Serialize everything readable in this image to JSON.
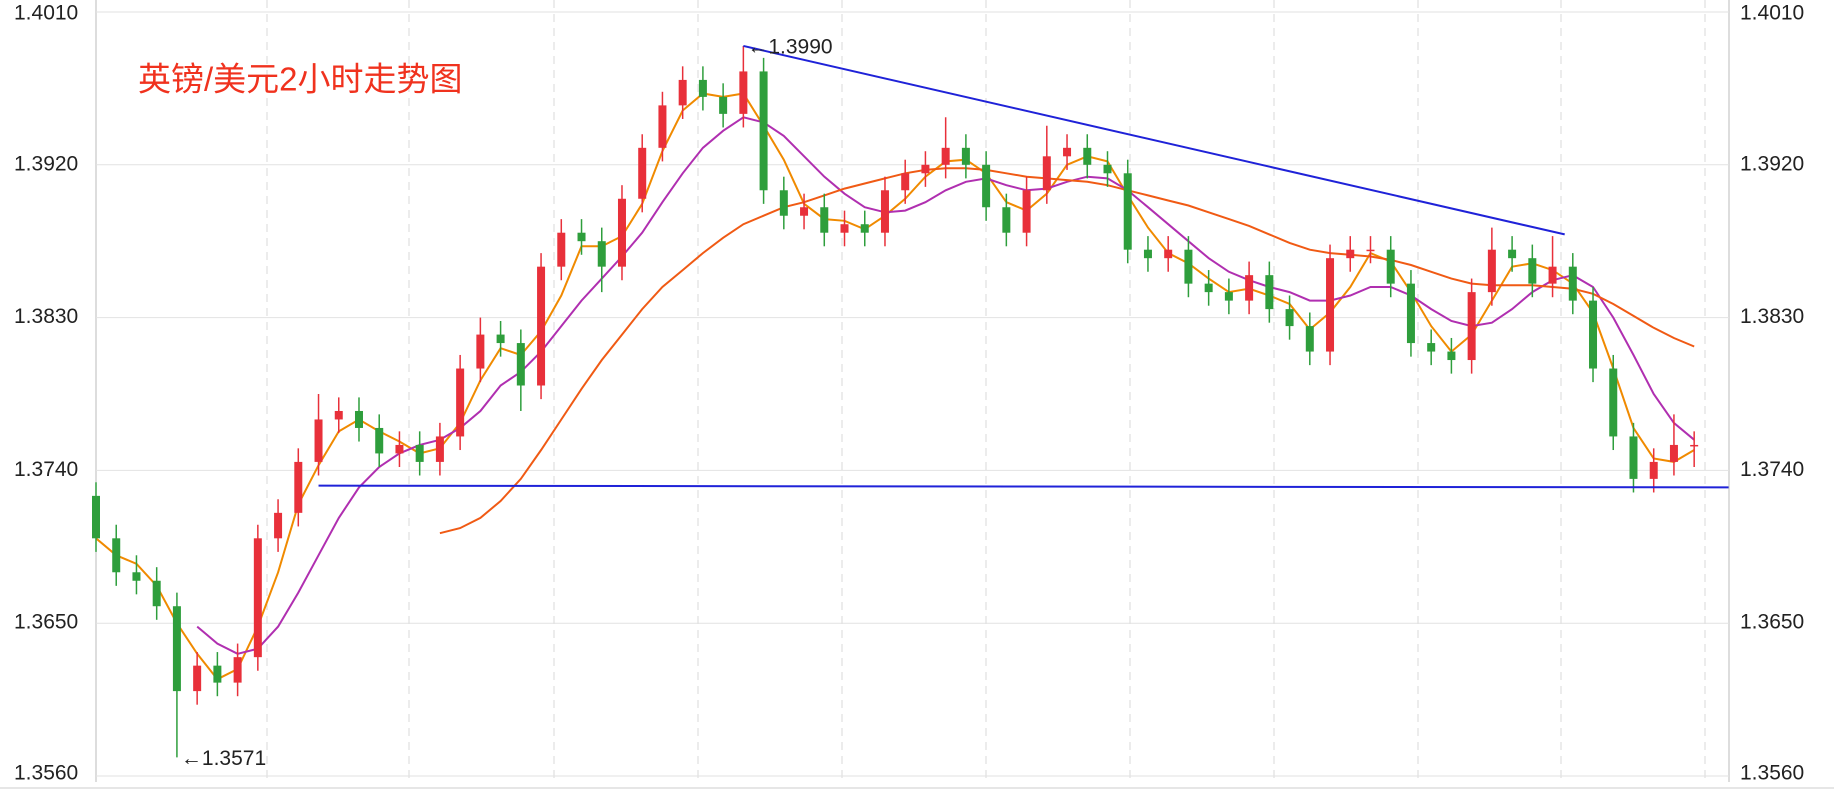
{
  "chart_data": {
    "type": "candlestick",
    "title": "英镑/美元2小时走势图",
    "up_color": "#e8303a",
    "down_color": "#2e9e3c",
    "ylim": [
      1.356,
      1.401
    ],
    "yticks": [
      {
        "value": 1.356,
        "label": "1.3560"
      },
      {
        "value": 1.365,
        "label": "1.3650"
      },
      {
        "value": 1.374,
        "label": "1.3740"
      },
      {
        "value": 1.383,
        "label": "1.3830"
      },
      {
        "value": 1.392,
        "label": "1.3920"
      },
      {
        "value": 1.401,
        "label": "1.4010"
      }
    ],
    "grid": true,
    "ohlc": [
      [
        1.3725,
        1.3733,
        1.3692,
        1.37
      ],
      [
        1.37,
        1.3708,
        1.3672,
        1.368
      ],
      [
        1.368,
        1.369,
        1.3667,
        1.3675
      ],
      [
        1.3675,
        1.3683,
        1.3652,
        1.366
      ],
      [
        1.366,
        1.3668,
        1.3571,
        1.361
      ],
      [
        1.361,
        1.3633,
        1.3602,
        1.3625
      ],
      [
        1.3625,
        1.3633,
        1.3607,
        1.3615
      ],
      [
        1.3615,
        1.3638,
        1.3607,
        1.363
      ],
      [
        1.363,
        1.3708,
        1.3622,
        1.37
      ],
      [
        1.37,
        1.3723,
        1.3692,
        1.3715
      ],
      [
        1.3715,
        1.3753,
        1.3707,
        1.3745
      ],
      [
        1.3745,
        1.3785,
        1.3737,
        1.377
      ],
      [
        1.377,
        1.3783,
        1.3762,
        1.3775
      ],
      [
        1.3775,
        1.3783,
        1.3757,
        1.3765
      ],
      [
        1.3765,
        1.3773,
        1.3742,
        1.375
      ],
      [
        1.375,
        1.3763,
        1.3742,
        1.3755
      ],
      [
        1.3755,
        1.3763,
        1.3737,
        1.3745
      ],
      [
        1.3745,
        1.3768,
        1.3737,
        1.376
      ],
      [
        1.376,
        1.3808,
        1.3752,
        1.38
      ],
      [
        1.38,
        1.383,
        1.3792,
        1.382
      ],
      [
        1.382,
        1.3828,
        1.3807,
        1.3815
      ],
      [
        1.3815,
        1.3823,
        1.3775,
        1.379
      ],
      [
        1.379,
        1.3868,
        1.3782,
        1.386
      ],
      [
        1.386,
        1.3888,
        1.3852,
        1.388
      ],
      [
        1.388,
        1.3888,
        1.3867,
        1.3875
      ],
      [
        1.3875,
        1.3883,
        1.3845,
        1.386
      ],
      [
        1.386,
        1.3908,
        1.3852,
        1.39
      ],
      [
        1.39,
        1.3938,
        1.3892,
        1.393
      ],
      [
        1.393,
        1.3963,
        1.3922,
        1.3955
      ],
      [
        1.3955,
        1.3978,
        1.3947,
        1.397
      ],
      [
        1.397,
        1.3978,
        1.3952,
        1.396
      ],
      [
        1.396,
        1.3968,
        1.3942,
        1.395
      ],
      [
        1.395,
        1.399,
        1.3942,
        1.3975
      ],
      [
        1.3975,
        1.3983,
        1.3897,
        1.3905
      ],
      [
        1.3905,
        1.3913,
        1.3882,
        1.389
      ],
      [
        1.389,
        1.3903,
        1.3882,
        1.3895
      ],
      [
        1.3895,
        1.3903,
        1.3872,
        1.388
      ],
      [
        1.388,
        1.3893,
        1.3872,
        1.3885
      ],
      [
        1.3885,
        1.3893,
        1.3872,
        1.388
      ],
      [
        1.388,
        1.3913,
        1.3872,
        1.3905
      ],
      [
        1.3905,
        1.3923,
        1.3897,
        1.3915
      ],
      [
        1.3915,
        1.3928,
        1.3907,
        1.392
      ],
      [
        1.392,
        1.3948,
        1.3912,
        1.393
      ],
      [
        1.393,
        1.3938,
        1.3912,
        1.392
      ],
      [
        1.392,
        1.3928,
        1.3887,
        1.3895
      ],
      [
        1.3895,
        1.3903,
        1.3872,
        1.388
      ],
      [
        1.388,
        1.3913,
        1.3872,
        1.3905
      ],
      [
        1.3905,
        1.3943,
        1.3897,
        1.3925
      ],
      [
        1.3925,
        1.3938,
        1.3917,
        1.393
      ],
      [
        1.393,
        1.3938,
        1.3912,
        1.392
      ],
      [
        1.392,
        1.3928,
        1.3907,
        1.3915
      ],
      [
        1.3915,
        1.3923,
        1.3862,
        1.387
      ],
      [
        1.387,
        1.3878,
        1.3857,
        1.3865
      ],
      [
        1.3865,
        1.3878,
        1.3857,
        1.387
      ],
      [
        1.387,
        1.3878,
        1.3842,
        1.385
      ],
      [
        1.385,
        1.3858,
        1.3837,
        1.3845
      ],
      [
        1.3845,
        1.3853,
        1.3832,
        1.384
      ],
      [
        1.384,
        1.3863,
        1.3832,
        1.3855
      ],
      [
        1.3855,
        1.3863,
        1.3827,
        1.3835
      ],
      [
        1.3835,
        1.3843,
        1.3817,
        1.3825
      ],
      [
        1.3825,
        1.3833,
        1.3802,
        1.381
      ],
      [
        1.381,
        1.3873,
        1.3802,
        1.3865
      ],
      [
        1.3865,
        1.3878,
        1.3857,
        1.387
      ],
      [
        1.387,
        1.3878,
        1.3862,
        1.387
      ],
      [
        1.387,
        1.3878,
        1.3842,
        1.385
      ],
      [
        1.385,
        1.3858,
        1.3807,
        1.3815
      ],
      [
        1.3815,
        1.3823,
        1.3802,
        1.381
      ],
      [
        1.381,
        1.3818,
        1.3797,
        1.3805
      ],
      [
        1.3805,
        1.3853,
        1.3797,
        1.3845
      ],
      [
        1.3845,
        1.3883,
        1.3837,
        1.387
      ],
      [
        1.387,
        1.3878,
        1.3857,
        1.3865
      ],
      [
        1.3865,
        1.3873,
        1.3842,
        1.385
      ],
      [
        1.385,
        1.3878,
        1.3842,
        1.386
      ],
      [
        1.386,
        1.3868,
        1.3832,
        1.384
      ],
      [
        1.384,
        1.3848,
        1.3792,
        1.38
      ],
      [
        1.38,
        1.3808,
        1.3752,
        1.376
      ],
      [
        1.376,
        1.3768,
        1.3727,
        1.3735
      ],
      [
        1.3735,
        1.3753,
        1.3727,
        1.3745
      ],
      [
        1.3745,
        1.3773,
        1.3737,
        1.3755
      ],
      [
        1.3755,
        1.3763,
        1.3742,
        1.3755
      ]
    ],
    "series": [
      {
        "color": "#f08a00",
        "values": [
          1.37,
          1.369,
          1.3685,
          1.3672,
          1.365,
          1.3632,
          1.3617,
          1.3623,
          1.3648,
          1.368,
          1.372,
          1.3743,
          1.3763,
          1.377,
          1.3763,
          1.3757,
          1.375,
          1.3753,
          1.3768,
          1.3793,
          1.3812,
          1.3808,
          1.3822,
          1.3843,
          1.3872,
          1.3872,
          1.3878,
          1.3897,
          1.3928,
          1.3952,
          1.3962,
          1.396,
          1.3962,
          1.3943,
          1.3923,
          1.3897,
          1.3888,
          1.3887,
          1.3882,
          1.389,
          1.39,
          1.3913,
          1.3922,
          1.3923,
          1.3915,
          1.3898,
          1.3893,
          1.3903,
          1.392,
          1.3925,
          1.3922,
          1.3902,
          1.3883,
          1.3868,
          1.3862,
          1.3853,
          1.3845,
          1.3847,
          1.3843,
          1.3838,
          1.3823,
          1.3833,
          1.3848,
          1.3868,
          1.3863,
          1.3845,
          1.3825,
          1.381,
          1.382,
          1.384,
          1.386,
          1.3862,
          1.3858,
          1.385,
          1.3833,
          1.38,
          1.3765,
          1.3747,
          1.3745,
          1.3752
        ]
      },
      {
        "color": "#b02fb0",
        "values": [
          null,
          null,
          null,
          null,
          null,
          1.3648,
          1.3638,
          1.3632,
          1.3635,
          1.3648,
          1.3668,
          1.369,
          1.3712,
          1.373,
          1.3742,
          1.375,
          1.3755,
          1.3758,
          1.3765,
          1.3775,
          1.379,
          1.3798,
          1.381,
          1.3825,
          1.384,
          1.3853,
          1.3866,
          1.388,
          1.3898,
          1.3915,
          1.393,
          1.394,
          1.3948,
          1.3945,
          1.3937,
          1.3925,
          1.3913,
          1.3903,
          1.3895,
          1.3892,
          1.3893,
          1.3898,
          1.3905,
          1.391,
          1.3912,
          1.3908,
          1.3905,
          1.3906,
          1.391,
          1.3913,
          1.3912,
          1.3905,
          1.3895,
          1.3885,
          1.3875,
          1.3865,
          1.3857,
          1.3852,
          1.3848,
          1.3845,
          1.384,
          1.384,
          1.3843,
          1.3848,
          1.3848,
          1.3843,
          1.3835,
          1.3828,
          1.3825,
          1.3827,
          1.3835,
          1.3845,
          1.3852,
          1.3855,
          1.3848,
          1.383,
          1.3808,
          1.3785,
          1.3768,
          1.3758
        ]
      },
      {
        "color": "#f05a14",
        "values": [
          null,
          null,
          null,
          null,
          null,
          null,
          null,
          null,
          null,
          null,
          null,
          null,
          null,
          null,
          null,
          null,
          null,
          1.3703,
          1.3706,
          1.3712,
          1.3722,
          1.3735,
          1.3752,
          1.377,
          1.3788,
          1.3805,
          1.382,
          1.3835,
          1.3848,
          1.3858,
          1.3868,
          1.3877,
          1.3885,
          1.389,
          1.3895,
          1.3898,
          1.3902,
          1.3906,
          1.3909,
          1.3912,
          1.3915,
          1.3917,
          1.3918,
          1.3918,
          1.3917,
          1.3915,
          1.3913,
          1.3912,
          1.3911,
          1.391,
          1.3908,
          1.3905,
          1.3902,
          1.3899,
          1.3896,
          1.3892,
          1.3888,
          1.3884,
          1.3879,
          1.3874,
          1.387,
          1.3868,
          1.3867,
          1.3866,
          1.3864,
          1.3861,
          1.3857,
          1.3853,
          1.385,
          1.3849,
          1.3849,
          1.3849,
          1.3848,
          1.3847,
          1.3844,
          1.3838,
          1.3831,
          1.3824,
          1.3818,
          1.3813
        ]
      }
    ],
    "trendlines": [
      {
        "color": "#1f22d8",
        "x": [
          32,
          72.6
        ],
        "y": [
          1.399,
          1.3879
        ]
      },
      {
        "color": "#1f22d8",
        "x": [
          11,
          80.7
        ],
        "y": [
          1.3731,
          1.373
        ]
      }
    ],
    "annotations": [
      {
        "text": "←1.3990",
        "x": 32,
        "y": 1.399
      },
      {
        "text": "←1.3571",
        "x": 4,
        "y": 1.3571
      }
    ]
  }
}
